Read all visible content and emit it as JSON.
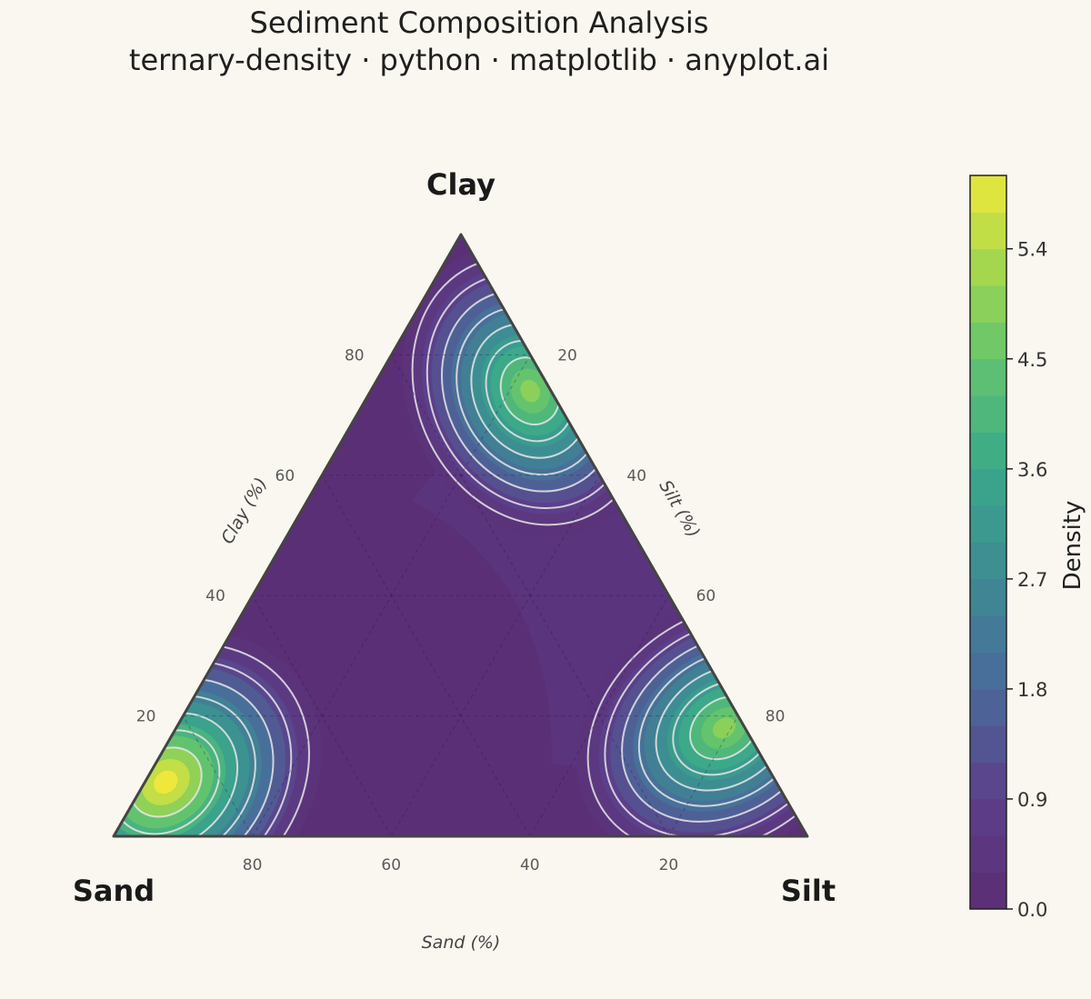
{
  "chart_data": {
    "type": "ternary-density",
    "title": "Sediment Composition Analysis",
    "subtitle": "ternary-density · python · matplotlib · anyplot.ai",
    "vertices": {
      "top": "Clay",
      "left": "Sand",
      "right": "Silt"
    },
    "axes": {
      "clay": {
        "label": "Clay (%)",
        "ticks": [
          20,
          40,
          60,
          80
        ]
      },
      "silt": {
        "label": "Silt (%)",
        "ticks": [
          20,
          40,
          60,
          80
        ]
      },
      "sand": {
        "label": "Sand (%)",
        "ticks": [
          80,
          60,
          40,
          20
        ]
      }
    },
    "clusters": [
      {
        "sand": 88,
        "silt": 3,
        "clay": 9,
        "peak_density": 6.0
      },
      {
        "sand": 3,
        "silt": 23,
        "clay": 74,
        "peak_density": 4.8
      },
      {
        "sand": 3,
        "silt": 79,
        "clay": 18,
        "peak_density": 4.8
      }
    ],
    "colorbar": {
      "label": "Density",
      "range": [
        0,
        6.0
      ],
      "ticks": [
        "0.0",
        "0.9",
        "1.8",
        "2.7",
        "3.6",
        "4.5",
        "5.4"
      ],
      "colormap": "viridis"
    },
    "grid": true,
    "colors": {
      "background": "#faf7f0",
      "frame": "#444444",
      "contour_lines": "#e8e8e8"
    }
  }
}
